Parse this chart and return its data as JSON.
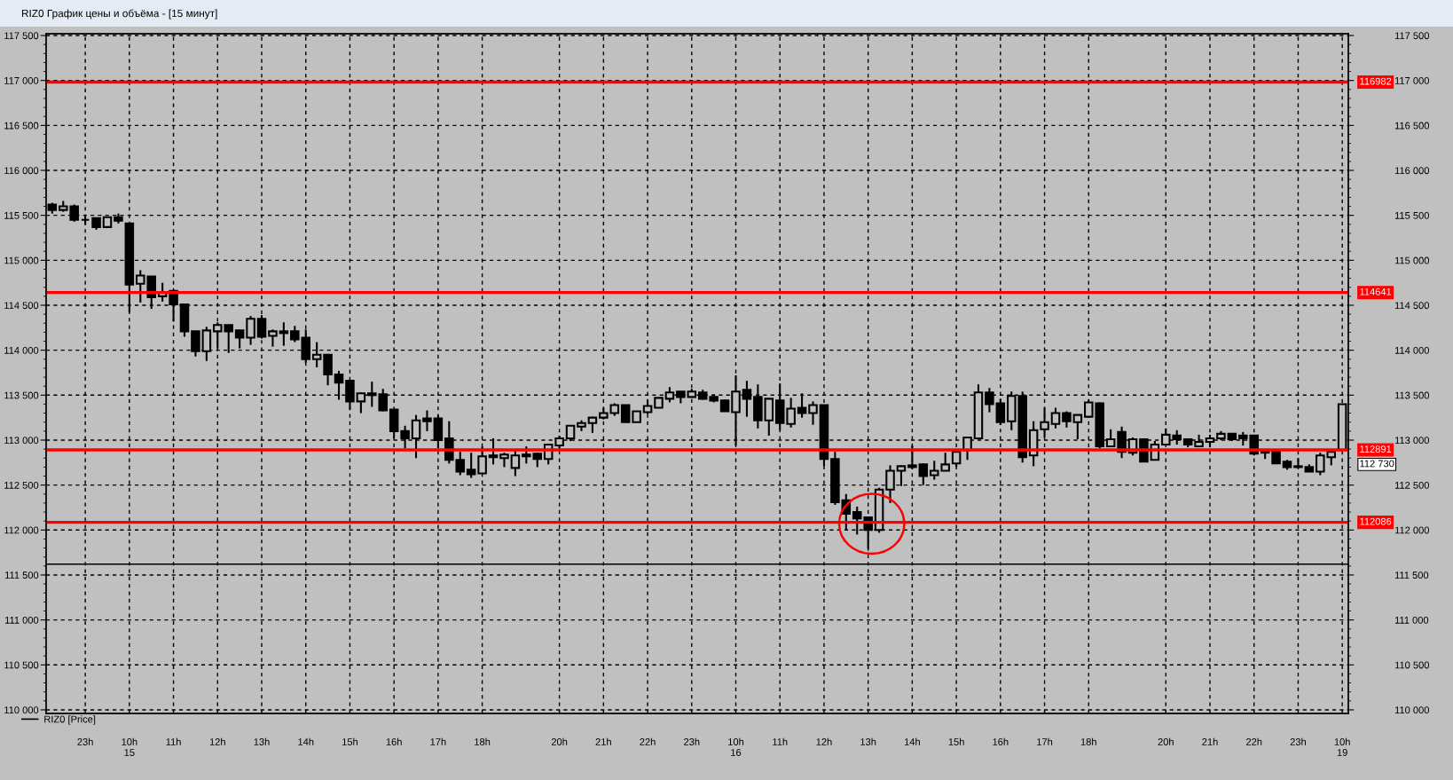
{
  "chart_data": {
    "type": "candlestick",
    "title": "RIZ0 График цены и объёма - [15 минут]",
    "categories": [
      null,
      null,
      null,
      "23h",
      null,
      null,
      null,
      "10h\n15",
      null,
      null,
      null,
      "11h",
      null,
      null,
      null,
      "12h",
      null,
      null,
      null,
      "13h",
      null,
      null,
      null,
      "14h",
      null,
      null,
      null,
      "15h",
      null,
      null,
      null,
      "16h",
      null,
      null,
      null,
      "17h",
      null,
      null,
      null,
      "18h",
      null,
      null,
      null,
      null,
      null,
      null,
      "20h",
      null,
      null,
      null,
      "21h",
      null,
      null,
      null,
      "22h",
      null,
      null,
      null,
      "23h",
      null,
      null,
      null,
      "10h\n16",
      null,
      null,
      null,
      "11h",
      null,
      null,
      null,
      "12h",
      null,
      null,
      null,
      "13h",
      null,
      null,
      null,
      "14h",
      null,
      null,
      null,
      "15h",
      null,
      null,
      null,
      "16h",
      null,
      null,
      null,
      "17h",
      null,
      null,
      null,
      "18h",
      null,
      null,
      null,
      null,
      null,
      null,
      "20h",
      null,
      null,
      null,
      "21h",
      null,
      null,
      null,
      "22h",
      null,
      null,
      null,
      "23h",
      null,
      null,
      null,
      "10h\n19"
    ],
    "series": [
      {
        "name": "RIZ0 [Price]",
        "color": "#000000",
        "ohlc": [
          [
            115620,
            115640,
            115520,
            115560
          ],
          [
            115560,
            115660,
            115540,
            115600
          ],
          [
            115600,
            115620,
            115430,
            115450
          ],
          [
            115450,
            115490,
            115400,
            115450
          ],
          [
            115470,
            115470,
            115340,
            115370
          ],
          [
            115370,
            115480,
            115370,
            115480
          ],
          [
            115480,
            115520,
            115410,
            115440
          ],
          [
            115410,
            115410,
            114420,
            114730
          ],
          [
            114740,
            114890,
            114530,
            114830
          ],
          [
            114820,
            114820,
            114460,
            114590
          ],
          [
            114600,
            114750,
            114540,
            114640
          ],
          [
            114660,
            114670,
            114320,
            114510
          ],
          [
            114510,
            114510,
            114150,
            114210
          ],
          [
            114210,
            114210,
            113930,
            113990
          ],
          [
            113990,
            114260,
            113880,
            114220
          ],
          [
            114210,
            114310,
            114020,
            114280
          ],
          [
            114280,
            114280,
            113970,
            114210
          ],
          [
            114220,
            114220,
            114020,
            114140
          ],
          [
            114140,
            114380,
            114060,
            114350
          ],
          [
            114350,
            114390,
            114130,
            114150
          ],
          [
            114160,
            114230,
            114040,
            114210
          ],
          [
            114210,
            114310,
            114050,
            114190
          ],
          [
            114210,
            114270,
            114090,
            114120
          ],
          [
            114140,
            114230,
            113860,
            113900
          ],
          [
            113900,
            114090,
            113810,
            113950
          ],
          [
            113950,
            113950,
            113610,
            113730
          ],
          [
            113730,
            113770,
            113450,
            113640
          ],
          [
            113660,
            113660,
            113340,
            113430
          ],
          [
            113430,
            113530,
            113300,
            113520
          ],
          [
            113520,
            113650,
            113370,
            113500
          ],
          [
            113510,
            113570,
            113320,
            113330
          ],
          [
            113340,
            113340,
            113020,
            113100
          ],
          [
            113100,
            113160,
            112910,
            113020
          ],
          [
            113020,
            113280,
            112800,
            113220
          ],
          [
            113240,
            113330,
            113100,
            113210
          ],
          [
            113240,
            113280,
            112910,
            113000
          ],
          [
            113020,
            113210,
            112740,
            112780
          ],
          [
            112780,
            112870,
            112610,
            112650
          ],
          [
            112670,
            112860,
            112580,
            112620
          ],
          [
            112630,
            112930,
            112630,
            112820
          ],
          [
            112830,
            113020,
            112730,
            112810
          ],
          [
            112800,
            112860,
            112700,
            112840
          ],
          [
            112690,
            112880,
            112600,
            112830
          ],
          [
            112840,
            112930,
            112740,
            112820
          ],
          [
            112850,
            112860,
            112700,
            112790
          ],
          [
            112790,
            112950,
            112730,
            112950
          ],
          [
            112940,
            113050,
            112900,
            113020
          ],
          [
            113020,
            113160,
            112990,
            113160
          ],
          [
            113150,
            113220,
            113100,
            113190
          ],
          [
            113190,
            113260,
            113080,
            113250
          ],
          [
            113250,
            113360,
            113230,
            113300
          ],
          [
            113300,
            113410,
            113270,
            113390
          ],
          [
            113390,
            113390,
            113200,
            113200
          ],
          [
            113200,
            113320,
            113200,
            113320
          ],
          [
            113310,
            113450,
            113290,
            113380
          ],
          [
            113360,
            113470,
            113360,
            113470
          ],
          [
            113460,
            113590,
            113420,
            113530
          ],
          [
            113540,
            113540,
            113410,
            113480
          ],
          [
            113480,
            113570,
            113470,
            113540
          ],
          [
            113530,
            113560,
            113450,
            113460
          ],
          [
            113480,
            113510,
            113420,
            113440
          ],
          [
            113440,
            113450,
            113320,
            113320
          ],
          [
            113310,
            113720,
            112940,
            113540
          ],
          [
            113560,
            113660,
            113260,
            113460
          ],
          [
            113480,
            113620,
            113130,
            113220
          ],
          [
            113220,
            113460,
            113050,
            113460
          ],
          [
            113440,
            113630,
            113110,
            113190
          ],
          [
            113180,
            113470,
            113140,
            113350
          ],
          [
            113360,
            113520,
            113250,
            113300
          ],
          [
            113300,
            113430,
            113170,
            113390
          ],
          [
            113390,
            113390,
            112710,
            112790
          ],
          [
            112790,
            112870,
            112280,
            112310
          ],
          [
            112330,
            112400,
            112000,
            112180
          ],
          [
            112200,
            112260,
            111950,
            112130
          ],
          [
            112140,
            112150,
            111790,
            112000
          ],
          [
            112000,
            112470,
            111970,
            112450
          ],
          [
            112450,
            112720,
            112300,
            112660
          ],
          [
            112660,
            112720,
            112490,
            112710
          ],
          [
            112720,
            112940,
            112680,
            112700
          ],
          [
            112730,
            112740,
            112500,
            112600
          ],
          [
            112610,
            112770,
            112560,
            112660
          ],
          [
            112660,
            112860,
            112660,
            112730
          ],
          [
            112740,
            112890,
            112700,
            112870
          ],
          [
            112890,
            113030,
            112780,
            113030
          ],
          [
            113020,
            113620,
            113020,
            113530
          ],
          [
            113530,
            113580,
            113310,
            113400
          ],
          [
            113410,
            113460,
            113170,
            113200
          ],
          [
            113210,
            113540,
            113110,
            113490
          ],
          [
            113490,
            113540,
            112750,
            112810
          ],
          [
            112830,
            113210,
            112710,
            113110
          ],
          [
            113120,
            113360,
            113030,
            113200
          ],
          [
            113180,
            113360,
            113130,
            113300
          ],
          [
            113300,
            113320,
            113140,
            113210
          ],
          [
            113200,
            113280,
            113010,
            113280
          ],
          [
            113260,
            113450,
            113250,
            113420
          ],
          [
            113410,
            113420,
            112910,
            112930
          ],
          [
            112930,
            113120,
            112930,
            113010
          ],
          [
            113090,
            113150,
            112800,
            112870
          ],
          [
            112860,
            113030,
            112830,
            113010
          ],
          [
            113010,
            113020,
            112760,
            112760
          ],
          [
            112780,
            112990,
            112780,
            112950
          ],
          [
            112950,
            113130,
            112940,
            113060
          ],
          [
            113050,
            113110,
            112950,
            113010
          ],
          [
            113010,
            113020,
            112920,
            112950
          ],
          [
            112930,
            113060,
            112920,
            112980
          ],
          [
            112980,
            113060,
            112920,
            113020
          ],
          [
            113020,
            113100,
            113000,
            113070
          ],
          [
            113070,
            113080,
            112990,
            113010
          ],
          [
            113050,
            113090,
            112940,
            113020
          ],
          [
            113050,
            113050,
            112830,
            112850
          ],
          [
            112880,
            112880,
            112790,
            112860
          ],
          [
            112870,
            112870,
            112740,
            112740
          ],
          [
            112760,
            112780,
            112670,
            112700
          ],
          [
            112710,
            112800,
            112690,
            112700
          ],
          [
            112700,
            112730,
            112650,
            112650
          ],
          [
            112650,
            112860,
            112610,
            112830
          ],
          [
            112810,
            112870,
            112720,
            112870
          ],
          [
            112890,
            113400,
            112890,
            113400
          ]
        ]
      }
    ],
    "ylim": [
      109960,
      117520
    ],
    "yticks": [
      {
        "value": 110000,
        "label": "110 000"
      },
      {
        "value": 110500,
        "label": "110 500"
      },
      {
        "value": 111000,
        "label": "111 000"
      },
      {
        "value": 111500,
        "label": "111 500"
      },
      {
        "value": 112000,
        "label": "112 000"
      },
      {
        "value": 112500,
        "label": "112 500"
      },
      {
        "value": 113000,
        "label": "113 000"
      },
      {
        "value": 113500,
        "label": "113 500"
      },
      {
        "value": 114000,
        "label": "114 000"
      },
      {
        "value": 114500,
        "label": "114 500"
      },
      {
        "value": 115000,
        "label": "115 000"
      },
      {
        "value": 115500,
        "label": "115 500"
      },
      {
        "value": 116000,
        "label": "116 000"
      },
      {
        "value": 116500,
        "label": "116 500"
      },
      {
        "value": 117000,
        "label": "117 000"
      },
      {
        "value": 117500,
        "label": "117 500"
      }
    ],
    "y2lim": [
      109960,
      117520
    ],
    "y2ticks": [
      {
        "value": 110000,
        "label": "110 000"
      },
      {
        "value": 110500,
        "label": "110 500"
      },
      {
        "value": 111000,
        "label": "111 000"
      },
      {
        "value": 111500,
        "label": "111 500"
      },
      {
        "value": 112000,
        "label": "112 000"
      },
      {
        "value": 112500,
        "label": "112 500"
      },
      {
        "value": 113000,
        "label": "113 000"
      },
      {
        "value": 113500,
        "label": "113 500"
      },
      {
        "value": 114000,
        "label": "114 000"
      },
      {
        "value": 114500,
        "label": "114 500"
      },
      {
        "value": 115000,
        "label": "115 000"
      },
      {
        "value": 115500,
        "label": "115 500"
      },
      {
        "value": 116000,
        "label": "116 000"
      },
      {
        "value": 116500,
        "label": "116 500"
      },
      {
        "value": 117000,
        "label": "117 000"
      },
      {
        "value": 117500,
        "label": "117 500"
      }
    ],
    "ref_lines": [
      {
        "axis": "y",
        "value": 116982,
        "label": "116982",
        "color": "#ff0000"
      },
      {
        "axis": "y",
        "value": 114641,
        "label": "114641",
        "color": "#ff0000"
      },
      {
        "axis": "y",
        "value": 112891,
        "label": "112891",
        "color": "#ff0000"
      },
      {
        "axis": "y",
        "value": 112086,
        "label": "112086",
        "color": "#ff0000"
      },
      {
        "axis": "y",
        "value": 111620,
        "color": "#000000"
      }
    ],
    "annotations": [
      "112 730"
    ],
    "grid": true,
    "legend": "bottom left"
  }
}
